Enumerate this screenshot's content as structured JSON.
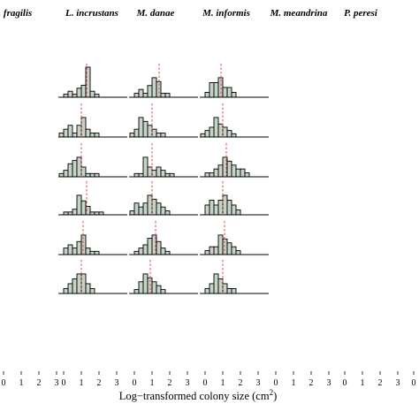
{
  "chart_data": {
    "type": "bar",
    "species": [
      "L. fragilis",
      "L. incrustans",
      "M. danae",
      "M. informis",
      "M. meandrina",
      "P. peresi"
    ],
    "xlabel_main": "Log−transformed colony size (cm",
    "xlabel_sup": "2",
    "xlabel_end": ")",
    "xticks": [
      "0",
      "1",
      "2",
      "3"
    ],
    "xlim": [
      -0.3,
      3.6
    ],
    "bin_width": 0.25,
    "colors": {
      "bar": "#c6d3c7",
      "median": "#e0474c",
      "edge": "#000000"
    },
    "panels": [
      {
        "col": 1,
        "row": 1,
        "start": 0.0,
        "counts": [
          1,
          2,
          1,
          3,
          4,
          10,
          2,
          1
        ],
        "median": 1.3
      },
      {
        "col": 1,
        "row": 2,
        "start": -0.25,
        "counts": [
          1,
          2,
          3,
          1,
          3,
          5,
          2,
          1,
          1
        ],
        "median": 1.0
      },
      {
        "col": 1,
        "row": 3,
        "start": -0.25,
        "counts": [
          1,
          2,
          4,
          5,
          6,
          3,
          1,
          1,
          1
        ],
        "median": 1.0
      },
      {
        "col": 1,
        "row": 4,
        "start": 0.0,
        "counts": [
          1,
          1,
          2,
          7,
          5,
          3,
          1,
          1,
          1
        ],
        "median": 1.3
      },
      {
        "col": 1,
        "row": 5,
        "start": 0.0,
        "counts": [
          2,
          3,
          2,
          4,
          6,
          2,
          1,
          1
        ],
        "median": 1.1
      },
      {
        "col": 1,
        "row": 6,
        "start": 0.0,
        "counts": [
          1,
          2,
          3,
          4,
          4,
          2,
          1
        ],
        "median": 1.0
      },
      {
        "col": 2,
        "row": 1,
        "start": 0.0,
        "counts": [
          1,
          2,
          1,
          3,
          5,
          4,
          1,
          1
        ],
        "median": 1.4
      },
      {
        "col": 2,
        "row": 2,
        "start": -0.25,
        "counts": [
          1,
          2,
          5,
          4,
          3,
          2,
          1,
          1
        ],
        "median": 1.0
      },
      {
        "col": 2,
        "row": 3,
        "start": 0.0,
        "counts": [
          1,
          1,
          6,
          3,
          2,
          3,
          2,
          1,
          1
        ],
        "median": 1.0
      },
      {
        "col": 2,
        "row": 4,
        "start": -0.25,
        "counts": [
          1,
          3,
          2,
          3,
          5,
          4,
          3,
          2,
          1
        ],
        "median": 1.0
      },
      {
        "col": 2,
        "row": 5,
        "start": 0.0,
        "counts": [
          1,
          2,
          3,
          5,
          6,
          4,
          2,
          1
        ],
        "median": 1.2
      },
      {
        "col": 2,
        "row": 6,
        "start": 0.0,
        "counts": [
          1,
          3,
          5,
          4,
          3,
          2,
          1
        ],
        "median": 0.9
      },
      {
        "col": 3,
        "row": 1,
        "start": 0.0,
        "counts": [
          1,
          3,
          3,
          4,
          2,
          2,
          1
        ],
        "median": 0.9
      },
      {
        "col": 3,
        "row": 2,
        "start": -0.25,
        "counts": [
          1,
          2,
          3,
          6,
          4,
          3,
          2,
          1
        ],
        "median": 1.0
      },
      {
        "col": 3,
        "row": 3,
        "start": 0.0,
        "counts": [
          1,
          1,
          2,
          3,
          5,
          4,
          3,
          2,
          2,
          1
        ],
        "median": 1.2
      },
      {
        "col": 3,
        "row": 4,
        "start": 0.0,
        "counts": [
          2,
          3,
          2,
          3,
          4,
          3,
          2,
          1
        ],
        "median": 1.0
      },
      {
        "col": 3,
        "row": 5,
        "start": 0.0,
        "counts": [
          1,
          2,
          2,
          5,
          4,
          3,
          2,
          1
        ],
        "median": 1.1
      },
      {
        "col": 3,
        "row": 6,
        "start": 0.0,
        "counts": [
          1,
          2,
          4,
          3,
          2,
          1,
          1
        ],
        "median": 1.0
      }
    ]
  }
}
